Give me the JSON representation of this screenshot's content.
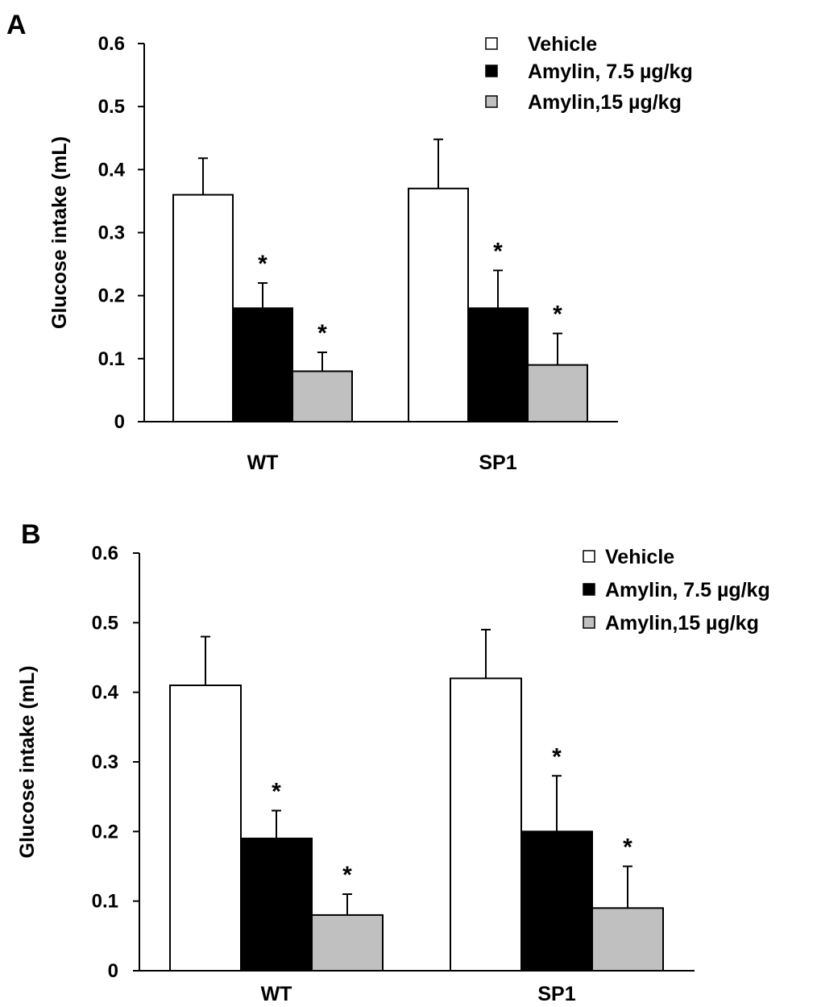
{
  "chart_data": [
    {
      "type": "bar",
      "panel_label": "A",
      "categories": [
        "WT",
        "SP1"
      ],
      "series": [
        {
          "name": "Vehicle",
          "values": [
            0.36,
            0.37
          ],
          "errors": [
            0.058,
            0.078
          ],
          "significant": [
            false,
            false
          ],
          "color": "#ffffff"
        },
        {
          "name": "Amylin, 7.5 µg/kg",
          "values": [
            0.18,
            0.18
          ],
          "errors": [
            0.04,
            0.06
          ],
          "significant": [
            true,
            true
          ],
          "color": "#000000"
        },
        {
          "name": "Amylin,15 µg/kg",
          "values": [
            0.08,
            0.09
          ],
          "errors": [
            0.03,
            0.05
          ],
          "significant": [
            true,
            true
          ],
          "color": "#c0c0c0"
        }
      ],
      "ylabel": "Glucose intake (mL)",
      "yticks": [
        "0",
        "0.1",
        "0.2",
        "0.3",
        "0.4",
        "0.5",
        "0.6"
      ],
      "ylim": [
        0,
        0.6
      ],
      "significance_marker": "*",
      "legend_position": "top-right",
      "grid": false
    },
    {
      "type": "bar",
      "panel_label": "B",
      "categories": [
        "WT",
        "SP1"
      ],
      "series": [
        {
          "name": "Vehicle",
          "values": [
            0.41,
            0.42
          ],
          "errors": [
            0.07,
            0.07
          ],
          "significant": [
            false,
            false
          ],
          "color": "#ffffff"
        },
        {
          "name": "Amylin, 7.5 µg/kg",
          "values": [
            0.19,
            0.2
          ],
          "errors": [
            0.04,
            0.08
          ],
          "significant": [
            true,
            true
          ],
          "color": "#000000"
        },
        {
          "name": "Amylin,15 µg/kg",
          "values": [
            0.08,
            0.09
          ],
          "errors": [
            0.03,
            0.06
          ],
          "significant": [
            true,
            true
          ],
          "color": "#c0c0c0"
        }
      ],
      "ylabel": "Glucose intake (mL)",
      "yticks": [
        "0",
        "0.1",
        "0.2",
        "0.3",
        "0.4",
        "0.5",
        "0.6"
      ],
      "ylim": [
        0,
        0.6
      ],
      "significance_marker": "*",
      "legend_position": "top-right",
      "grid": false
    }
  ]
}
